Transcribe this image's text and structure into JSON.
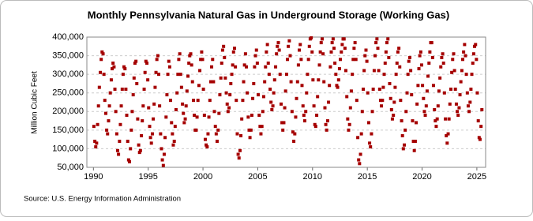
{
  "chart_data": {
    "type": "scatter",
    "title": "Monthly Pennsylvania Natural Gas in Underground Storage (Working Gas)",
    "y_label": "Million Cubic Feet",
    "source": "Source: U.S. Energy Information Administration",
    "color": "#a50000",
    "grid": true,
    "xlim": [
      1989.4,
      2025.8
    ],
    "xticks": [
      1990,
      1995,
      2000,
      2005,
      2010,
      2015,
      2020,
      2025
    ],
    "ylim": [
      50000,
      400000
    ],
    "yticks": [
      {
        "value": 50000,
        "label": "50,000"
      },
      {
        "value": 100000,
        "label": "100,000"
      },
      {
        "value": 150000,
        "label": "150,000"
      },
      {
        "value": 200000,
        "label": "200,000"
      },
      {
        "value": 250000,
        "label": "250,000"
      },
      {
        "value": 300000,
        "label": "300,000"
      },
      {
        "value": 350000,
        "label": "350,000"
      },
      {
        "value": 400000,
        "label": "400,000"
      }
    ],
    "x": [
      1990.04,
      1990.13,
      1990.21,
      1990.29,
      1990.38,
      1990.46,
      1990.54,
      1990.63,
      1990.71,
      1990.79,
      1990.88,
      1990.96,
      1991.04,
      1991.13,
      1991.21,
      1991.29,
      1991.38,
      1991.46,
      1991.54,
      1991.63,
      1991.71,
      1991.79,
      1991.88,
      1991.96,
      1992.04,
      1992.13,
      1992.21,
      1992.29,
      1992.38,
      1992.46,
      1992.54,
      1992.63,
      1992.71,
      1992.79,
      1992.88,
      1992.96,
      1993.04,
      1993.13,
      1993.21,
      1993.29,
      1993.38,
      1993.46,
      1993.54,
      1993.63,
      1993.71,
      1993.79,
      1993.88,
      1993.96,
      1994.04,
      1994.13,
      1994.21,
      1994.29,
      1994.38,
      1994.46,
      1994.54,
      1994.63,
      1994.71,
      1994.79,
      1994.88,
      1994.96,
      1995.04,
      1995.13,
      1995.21,
      1995.29,
      1995.38,
      1995.46,
      1995.54,
      1995.63,
      1995.71,
      1995.79,
      1995.88,
      1995.96,
      1996.04,
      1996.13,
      1996.21,
      1996.29,
      1996.38,
      1996.46,
      1996.54,
      1996.63,
      1996.71,
      1996.79,
      1996.88,
      1996.96,
      1997.04,
      1997.13,
      1997.21,
      1997.29,
      1997.38,
      1997.46,
      1997.54,
      1997.63,
      1997.71,
      1997.79,
      1997.88,
      1997.96,
      1998.04,
      1998.13,
      1998.21,
      1998.29,
      1998.38,
      1998.46,
      1998.54,
      1998.63,
      1998.71,
      1998.79,
      1998.88,
      1998.96,
      1999.04,
      1999.13,
      1999.21,
      1999.29,
      1999.38,
      1999.46,
      1999.54,
      1999.63,
      1999.71,
      1999.79,
      1999.88,
      1999.96,
      2000.04,
      2000.13,
      2000.21,
      2000.29,
      2000.38,
      2000.46,
      2000.54,
      2000.63,
      2000.71,
      2000.79,
      2000.88,
      2000.96,
      2001.04,
      2001.13,
      2001.21,
      2001.29,
      2001.38,
      2001.46,
      2001.54,
      2001.63,
      2001.71,
      2001.79,
      2001.88,
      2001.96,
      2002.04,
      2002.13,
      2002.21,
      2002.29,
      2002.38,
      2002.46,
      2002.54,
      2002.63,
      2002.71,
      2002.79,
      2002.88,
      2002.96,
      2003.04,
      2003.13,
      2003.21,
      2003.29,
      2003.38,
      2003.46,
      2003.54,
      2003.63,
      2003.71,
      2003.79,
      2003.88,
      2003.96,
      2004.04,
      2004.13,
      2004.21,
      2004.29,
      2004.38,
      2004.46,
      2004.54,
      2004.63,
      2004.71,
      2004.79,
      2004.88,
      2004.96,
      2005.04,
      2005.13,
      2005.21,
      2005.29,
      2005.38,
      2005.46,
      2005.54,
      2005.63,
      2005.71,
      2005.79,
      2005.88,
      2005.96,
      2006.04,
      2006.13,
      2006.21,
      2006.29,
      2006.38,
      2006.46,
      2006.54,
      2006.63,
      2006.71,
      2006.79,
      2006.88,
      2006.96,
      2007.04,
      2007.13,
      2007.21,
      2007.29,
      2007.38,
      2007.46,
      2007.54,
      2007.63,
      2007.71,
      2007.79,
      2007.88,
      2007.96,
      2008.04,
      2008.13,
      2008.21,
      2008.29,
      2008.38,
      2008.46,
      2008.54,
      2008.63,
      2008.71,
      2008.79,
      2008.88,
      2008.96,
      2009.04,
      2009.13,
      2009.21,
      2009.29,
      2009.38,
      2009.46,
      2009.54,
      2009.63,
      2009.71,
      2009.79,
      2009.88,
      2009.96,
      2010.04,
      2010.13,
      2010.21,
      2010.29,
      2010.38,
      2010.46,
      2010.54,
      2010.63,
      2010.71,
      2010.79,
      2010.88,
      2010.96,
      2011.04,
      2011.13,
      2011.21,
      2011.29,
      2011.38,
      2011.46,
      2011.54,
      2011.63,
      2011.71,
      2011.79,
      2011.88,
      2011.96,
      2012.04,
      2012.13,
      2012.21,
      2012.29,
      2012.38,
      2012.46,
      2012.54,
      2012.63,
      2012.71,
      2012.79,
      2012.88,
      2012.96,
      2013.04,
      2013.13,
      2013.21,
      2013.29,
      2013.38,
      2013.46,
      2013.54,
      2013.63,
      2013.71,
      2013.79,
      2013.88,
      2013.96,
      2014.04,
      2014.13,
      2014.21,
      2014.29,
      2014.38,
      2014.46,
      2014.54,
      2014.63,
      2014.71,
      2014.79,
      2014.88,
      2014.96,
      2015.04,
      2015.13,
      2015.21,
      2015.29,
      2015.38,
      2015.46,
      2015.54,
      2015.63,
      2015.71,
      2015.79,
      2015.88,
      2015.96,
      2016.04,
      2016.13,
      2016.21,
      2016.29,
      2016.38,
      2016.46,
      2016.54,
      2016.63,
      2016.71,
      2016.79,
      2016.88,
      2016.96,
      2017.04,
      2017.13,
      2017.21,
      2017.29,
      2017.38,
      2017.46,
      2017.54,
      2017.63,
      2017.71,
      2017.79,
      2017.88,
      2017.96,
      2018.04,
      2018.13,
      2018.21,
      2018.29,
      2018.38,
      2018.46,
      2018.54,
      2018.63,
      2018.71,
      2018.79,
      2018.88,
      2018.96,
      2019.04,
      2019.13,
      2019.21,
      2019.29,
      2019.38,
      2019.46,
      2019.54,
      2019.63,
      2019.71,
      2019.79,
      2019.88,
      2019.96,
      2020.04,
      2020.13,
      2020.21,
      2020.29,
      2020.38,
      2020.46,
      2020.54,
      2020.63,
      2020.71,
      2020.79,
      2020.88,
      2020.96,
      2021.04,
      2021.13,
      2021.21,
      2021.29,
      2021.38,
      2021.46,
      2021.54,
      2021.63,
      2021.71,
      2021.79,
      2021.88,
      2021.96,
      2022.04,
      2022.13,
      2022.21,
      2022.29,
      2022.38,
      2022.46,
      2022.54,
      2022.63,
      2022.71,
      2022.79,
      2022.88,
      2022.96,
      2023.04,
      2023.13,
      2023.21,
      2023.29,
      2023.38,
      2023.46,
      2023.54,
      2023.63,
      2023.71,
      2023.79,
      2023.88,
      2023.96,
      2024.04,
      2024.13,
      2024.21,
      2024.29,
      2024.38,
      2024.46,
      2024.54,
      2024.63,
      2024.71,
      2024.79,
      2024.88,
      2024.96,
      2025.04,
      2025.13,
      2025.21,
      2025.29,
      2025.38,
      2025.46
    ],
    "values": [
      160000,
      120000,
      105000,
      115000,
      165000,
      215000,
      265000,
      305000,
      340000,
      360000,
      355000,
      300000,
      230000,
      195000,
      150000,
      140000,
      175000,
      215000,
      250000,
      285000,
      315000,
      330000,
      320000,
      260000,
      200000,
      140000,
      95000,
      85000,
      120000,
      165000,
      215000,
      260000,
      300000,
      320000,
      315000,
      260000,
      190000,
      120000,
      70000,
      65000,
      100000,
      150000,
      200000,
      245000,
      290000,
      330000,
      335000,
      275000,
      180000,
      110000,
      90000,
      95000,
      135000,
      175000,
      215000,
      260000,
      305000,
      335000,
      330000,
      285000,
      210000,
      160000,
      130000,
      115000,
      140000,
      180000,
      220000,
      265000,
      305000,
      340000,
      350000,
      300000,
      215000,
      140000,
      100000,
      70000,
      55000,
      85000,
      130000,
      185000,
      245000,
      300000,
      335000,
      320000,
      230000,
      170000,
      140000,
      110000,
      120000,
      160000,
      205000,
      250000,
      300000,
      340000,
      355000,
      300000,
      265000,
      220000,
      195000,
      170000,
      180000,
      215000,
      255000,
      295000,
      330000,
      350000,
      355000,
      325000,
      280000,
      230000,
      190000,
      150000,
      150000,
      185000,
      230000,
      270000,
      310000,
      340000,
      360000,
      340000,
      260000,
      190000,
      125000,
      110000,
      105000,
      140000,
      185000,
      230000,
      280000,
      320000,
      340000,
      280000,
      200000,
      160000,
      140000,
      120000,
      150000,
      195000,
      245000,
      290000,
      330000,
      365000,
      375000,
      345000,
      290000,
      250000,
      220000,
      200000,
      210000,
      245000,
      275000,
      300000,
      325000,
      360000,
      370000,
      320000,
      230000,
      140000,
      85000,
      75000,
      95000,
      135000,
      180000,
      230000,
      280000,
      325000,
      355000,
      320000,
      250000,
      185000,
      150000,
      130000,
      150000,
      190000,
      235000,
      275000,
      320000,
      350000,
      365000,
      330000,
      245000,
      190000,
      160000,
      140000,
      160000,
      200000,
      240000,
      280000,
      320000,
      360000,
      380000,
      330000,
      300000,
      260000,
      225000,
      205000,
      215000,
      250000,
      285000,
      320000,
      355000,
      375000,
      385000,
      365000,
      300000,
      220000,
      170000,
      150000,
      170000,
      210000,
      255000,
      300000,
      340000,
      375000,
      390000,
      350000,
      280000,
      200000,
      145000,
      120000,
      140000,
      185000,
      235000,
      280000,
      325000,
      365000,
      380000,
      340000,
      270000,
      215000,
      190000,
      175000,
      200000,
      250000,
      300000,
      340000,
      375000,
      395000,
      398000,
      360000,
      285000,
      215000,
      165000,
      160000,
      190000,
      240000,
      285000,
      325000,
      360000,
      385000,
      395000,
      355000,
      280000,
      210000,
      165000,
      150000,
      175000,
      225000,
      270000,
      320000,
      360000,
      385000,
      395000,
      370000,
      330000,
      300000,
      270000,
      265000,
      285000,
      315000,
      340000,
      360000,
      380000,
      395000,
      395000,
      370000,
      310000,
      240000,
      180000,
      150000,
      165000,
      210000,
      255000,
      300000,
      340000,
      370000,
      385000,
      340000,
      230000,
      130000,
      70000,
      60000,
      85000,
      140000,
      200000,
      260000,
      310000,
      350000,
      365000,
      335000,
      250000,
      170000,
      115000,
      105000,
      140000,
      200000,
      260000,
      310000,
      350000,
      385000,
      395000,
      370000,
      310000,
      260000,
      230000,
      215000,
      230000,
      265000,
      300000,
      330000,
      360000,
      385000,
      395000,
      345000,
      275000,
      235000,
      205000,
      180000,
      190000,
      225000,
      265000,
      300000,
      330000,
      360000,
      370000,
      320000,
      230000,
      175000,
      135000,
      100000,
      110000,
      150000,
      200000,
      250000,
      300000,
      335000,
      345000,
      310000,
      245000,
      175000,
      120000,
      95000,
      120000,
      170000,
      220000,
      270000,
      315000,
      350000,
      360000,
      325000,
      270000,
      235000,
      200000,
      190000,
      215000,
      255000,
      295000,
      330000,
      360000,
      385000,
      385000,
      345000,
      270000,
      205000,
      175000,
      160000,
      180000,
      215000,
      255000,
      290000,
      320000,
      345000,
      355000,
      330000,
      250000,
      180000,
      135000,
      115000,
      140000,
      180000,
      220000,
      260000,
      305000,
      340000,
      355000,
      310000,
      260000,
      220000,
      200000,
      190000,
      210000,
      245000,
      280000,
      310000,
      340000,
      360000,
      380000,
      350000,
      300000,
      250000,
      215000,
      200000,
      225000,
      260000,
      300000,
      330000,
      355000,
      375000,
      380000,
      340000,
      250000,
      175000,
      130000,
      125000,
      160000,
      205000
    ]
  }
}
